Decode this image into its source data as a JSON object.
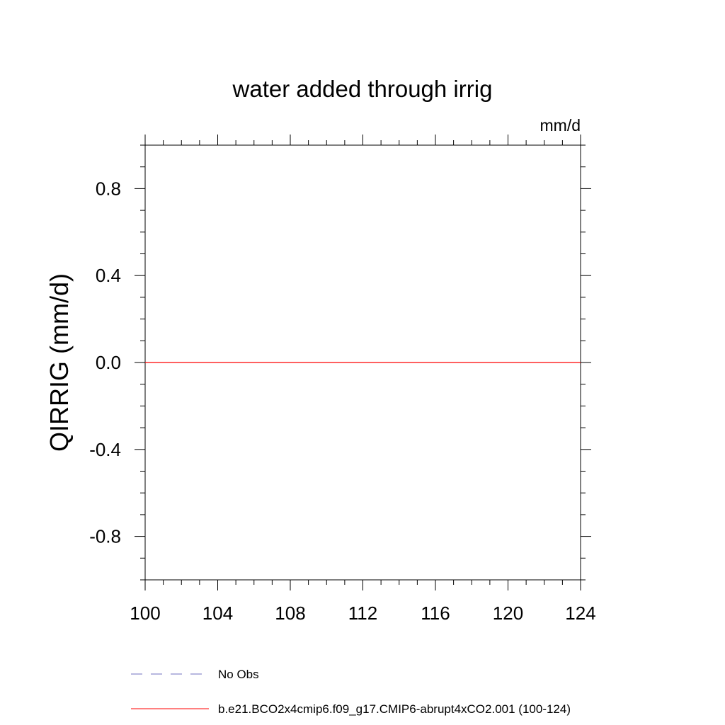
{
  "chart_data": {
    "type": "line",
    "title": "water added through irrig",
    "units_label": "mm/d",
    "ylabel": "QIRRIG  (mm/d)",
    "xlabel": "",
    "xlim": [
      100,
      124
    ],
    "ylim": [
      -1.0,
      1.0
    ],
    "x_ticks": [
      100,
      104,
      108,
      112,
      116,
      120,
      124
    ],
    "x_tick_labels": [
      "100",
      "104",
      "108",
      "112",
      "116",
      "120",
      "124"
    ],
    "x_minor_step": 1,
    "y_ticks": [
      -0.8,
      -0.4,
      0.0,
      0.4,
      0.8
    ],
    "y_tick_labels": [
      "-0.8",
      "-0.4",
      "0.0",
      "0.4",
      "0.8"
    ],
    "y_minor_step": 0.1,
    "grid": false,
    "legend_position": "bottom",
    "series": [
      {
        "name": "b.e21.BCO2x4cmip6.f09_g17.CMIP6-abrupt4xCO2.001 (100-124)",
        "color": "#ff0000",
        "style": "solid",
        "x": [
          100,
          101,
          102,
          103,
          104,
          105,
          106,
          107,
          108,
          109,
          110,
          111,
          112,
          113,
          114,
          115,
          116,
          117,
          118,
          119,
          120,
          121,
          122,
          123,
          124
        ],
        "y": [
          0,
          0,
          0,
          0,
          0,
          0,
          0,
          0,
          0,
          0,
          0,
          0,
          0,
          0,
          0,
          0,
          0,
          0,
          0,
          0,
          0,
          0,
          0,
          0,
          0
        ]
      }
    ],
    "legend": [
      {
        "label": "No Obs",
        "color": "#7070c0",
        "style": "dashed"
      },
      {
        "label": "b.e21.BCO2x4cmip6.f09_g17.CMIP6-abrupt4xCO2.001 (100-124)",
        "color": "#ff0000",
        "style": "solid"
      }
    ]
  }
}
